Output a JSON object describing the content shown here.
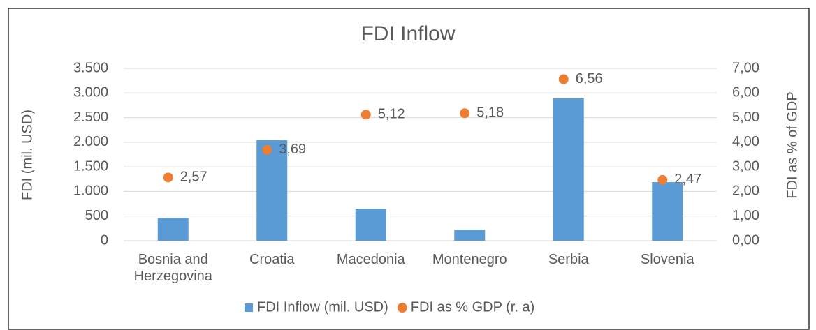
{
  "chart_data": {
    "type": "bar",
    "title": "FDI Inflow",
    "y_label": "FDI (mil. USD)",
    "y2_label": "FDI as % of GDP",
    "categories": [
      "Bosnia and Herzegovina",
      "Croatia",
      "Macedonia",
      "Montenegro",
      "Serbia",
      "Slovenia"
    ],
    "series": [
      {
        "name": "FDI Inflow (mil. USD)",
        "type": "bar",
        "color": "#5b9bd5",
        "values": [
          460,
          2040,
          650,
          220,
          2890,
          1190
        ]
      },
      {
        "name": "FDI as % GDP (r. a)",
        "type": "scatter",
        "axis": "y2",
        "color": "#ed7d31",
        "values": [
          2.57,
          3.69,
          5.12,
          5.18,
          6.56,
          2.47
        ],
        "value_labels": [
          "2,57",
          "3,69",
          "5,12",
          "5,18",
          "6,56",
          "2,47"
        ]
      }
    ],
    "ylim": [
      0,
      3500
    ],
    "yticks": [
      0,
      500,
      {
        "value": 1000,
        "label": "1.000"
      },
      {
        "value": 1500,
        "label": "1.500"
      },
      {
        "value": 2000,
        "label": "2.000"
      },
      {
        "value": 2500,
        "label": "2.500"
      },
      {
        "value": 3000,
        "label": "3.000"
      },
      {
        "value": 3500,
        "label": "3.500"
      }
    ],
    "y2lim": [
      0,
      7
    ],
    "y2ticks": [
      {
        "value": 0,
        "label": "0,00"
      },
      {
        "value": 1,
        "label": "1,00"
      },
      {
        "value": 2,
        "label": "2,00"
      },
      {
        "value": 3,
        "label": "3,00"
      },
      {
        "value": 4,
        "label": "4,00"
      },
      {
        "value": 5,
        "label": "5,00"
      },
      {
        "value": 6,
        "label": "6,00"
      },
      {
        "value": 7,
        "label": "7,00"
      }
    ],
    "grid": true,
    "legend": "bottom"
  }
}
